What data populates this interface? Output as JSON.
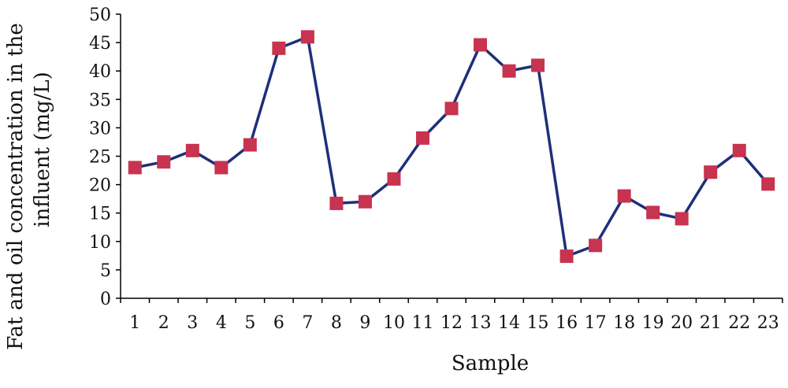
{
  "chart_data": {
    "type": "line",
    "xlabel": "Sample",
    "ylabel": [
      "Fat and oil concentration in the",
      "influent (mg/L)"
    ],
    "ylim": [
      0,
      50
    ],
    "yticks": [
      0,
      5,
      10,
      15,
      20,
      25,
      30,
      35,
      40,
      45,
      50
    ],
    "grid": false,
    "legend": "none",
    "categories": [
      "1",
      "2",
      "3",
      "4",
      "5",
      "6",
      "7",
      "8",
      "9",
      "10",
      "11",
      "12",
      "13",
      "14",
      "15",
      "16",
      "17",
      "18",
      "19",
      "20",
      "21",
      "22",
      "23"
    ],
    "series": [
      {
        "values": [
          23,
          24,
          26,
          23,
          27,
          44,
          46,
          16.7,
          17,
          21,
          28.2,
          33.4,
          44.6,
          40,
          41,
          7.4,
          9.3,
          18,
          15.1,
          14,
          22.2,
          26,
          20.1
        ],
        "line_color": "#1f2f7a",
        "marker": "square",
        "marker_color": "#c8334f"
      }
    ]
  }
}
